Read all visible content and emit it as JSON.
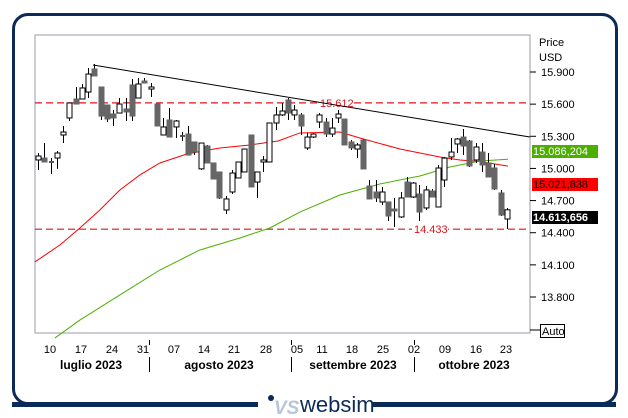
{
  "axis": {
    "title": "Price",
    "unit": "USD",
    "auto_label": "Auto",
    "ticks": [
      "15.900",
      "15.600",
      "15.300",
      "15.000",
      "14.700",
      "14.400",
      "14.100",
      "13.800"
    ]
  },
  "badges": {
    "ma_green": {
      "text": "15.086,204",
      "color": "#4caf00"
    },
    "ma_red": {
      "text": "15.021,838",
      "color": "#ff0000"
    },
    "last": {
      "text": "14.613,656",
      "color": "#000000"
    }
  },
  "levels": {
    "resistance": {
      "value": 15.612,
      "label": "15.612"
    },
    "support": {
      "value": 14.433,
      "label": "14.433"
    }
  },
  "date_labels": [
    "10",
    "17",
    "24",
    "31",
    "07",
    "14",
    "21",
    "28",
    "05",
    "11",
    "18",
    "25",
    "02",
    "09",
    "16",
    "23"
  ],
  "months": [
    "luglio 2023",
    "agosto 2023",
    "settembre 2023",
    "ottobre 2023"
  ],
  "brand": "websim",
  "chart_data": {
    "type": "candlestick",
    "ylabel": "Price USD",
    "ylim": [
      13.464,
      16.245
    ],
    "ohlc": [
      [
        15.079,
        15.144,
        14.985,
        15.116
      ],
      [
        15.097,
        15.237,
        15.06,
        15.06
      ],
      [
        15.06,
        15.097,
        14.948,
        15.06
      ],
      [
        15.097,
        15.163,
        14.996,
        15.144
      ],
      [
        15.312,
        15.396,
        15.237,
        15.34
      ],
      [
        15.471,
        15.611,
        15.443,
        15.611
      ],
      [
        15.648,
        15.76,
        15.601,
        15.601
      ],
      [
        15.648,
        15.788,
        15.648,
        15.751
      ],
      [
        15.713,
        15.937,
        15.657,
        15.881
      ],
      [
        15.928,
        15.975,
        15.863,
        15.863
      ],
      [
        15.76,
        15.76,
        15.452,
        15.489
      ],
      [
        15.592,
        15.592,
        15.433,
        15.461
      ],
      [
        15.508,
        15.545,
        15.396,
        15.471
      ],
      [
        15.517,
        15.657,
        15.517,
        15.601
      ],
      [
        15.555,
        15.657,
        15.443,
        15.527
      ],
      [
        15.779,
        15.835,
        15.443,
        15.489
      ],
      [
        15.657,
        15.844,
        15.657,
        15.788
      ],
      [
        15.816,
        15.844,
        15.797,
        15.797
      ],
      [
        15.741,
        15.797,
        15.667,
        15.76
      ],
      [
        15.601,
        15.601,
        15.396,
        15.396
      ],
      [
        15.312,
        15.471,
        15.312,
        15.387
      ],
      [
        15.452,
        15.564,
        15.293,
        15.293
      ],
      [
        15.387,
        15.452,
        15.284,
        15.443
      ],
      [
        15.303,
        15.34,
        15.256,
        15.303
      ],
      [
        15.321,
        15.396,
        15.125,
        15.125
      ],
      [
        15.247,
        15.247,
        15.125,
        15.153
      ],
      [
        14.996,
        15.237,
        14.985,
        15.237
      ],
      [
        15.209,
        15.219,
        15.051,
        15.051
      ],
      [
        15.051,
        15.051,
        14.901,
        14.901
      ],
      [
        14.967,
        14.967,
        14.715,
        14.724
      ],
      [
        14.612,
        14.743,
        14.575,
        14.715
      ],
      [
        14.78,
        14.985,
        14.761,
        14.957
      ],
      [
        14.911,
        15.06,
        14.911,
        15.06
      ],
      [
        14.967,
        15.181,
        14.967,
        15.181
      ],
      [
        15.312,
        15.312,
        14.827,
        14.827
      ],
      [
        14.873,
        14.967,
        14.724,
        14.967
      ],
      [
        15.06,
        15.116,
        14.967,
        15.079
      ],
      [
        15.06,
        15.424,
        15.06,
        15.424
      ],
      [
        15.424,
        15.573,
        15.359,
        15.499
      ],
      [
        15.499,
        15.611,
        15.489,
        15.536
      ],
      [
        15.639,
        15.657,
        15.452,
        15.517
      ],
      [
        15.499,
        15.592,
        15.452,
        15.545
      ],
      [
        15.499,
        15.517,
        15.312,
        15.396
      ],
      [
        15.191,
        15.331,
        15.172,
        15.293
      ],
      [
        15.293,
        15.331,
        15.284,
        15.321
      ],
      [
        15.433,
        15.517,
        15.377,
        15.499
      ],
      [
        15.433,
        15.471,
        15.293,
        15.321
      ],
      [
        15.321,
        15.471,
        15.293,
        15.377
      ],
      [
        15.471,
        15.545,
        15.424,
        15.508
      ],
      [
        15.461,
        15.461,
        15.219,
        15.219
      ],
      [
        15.247,
        15.265,
        15.172,
        15.191
      ],
      [
        15.181,
        15.237,
        15.097,
        15.219
      ],
      [
        15.265,
        15.275,
        14.995,
        14.995
      ],
      [
        14.836,
        14.892,
        14.715,
        14.715
      ],
      [
        14.78,
        14.892,
        14.687,
        14.724
      ],
      [
        14.687,
        14.827,
        14.659,
        14.78
      ],
      [
        14.687,
        14.687,
        14.509,
        14.556
      ],
      [
        14.621,
        14.724,
        14.453,
        14.603
      ],
      [
        14.547,
        14.78,
        14.537,
        14.724
      ],
      [
        14.873,
        14.92,
        14.733,
        14.733
      ],
      [
        14.733,
        14.873,
        14.724,
        14.864
      ],
      [
        14.761,
        14.845,
        14.509,
        14.593
      ],
      [
        14.631,
        14.836,
        14.612,
        14.799
      ],
      [
        14.789,
        14.808,
        14.733,
        14.733
      ],
      [
        14.64,
        15.032,
        14.64,
        15.004
      ],
      [
        14.892,
        15.107,
        14.827,
        15.097
      ],
      [
        15.107,
        15.284,
        15.079,
        15.153
      ],
      [
        15.228,
        15.284,
        15.144,
        15.275
      ],
      [
        15.293,
        15.368,
        15.125,
        15.209
      ],
      [
        15.256,
        15.265,
        15.013,
        15.023
      ],
      [
        15.079,
        15.237,
        15.051,
        15.2
      ],
      [
        15.153,
        15.237,
        14.967,
        15.032
      ],
      [
        15.051,
        15.144,
        14.92,
        14.92
      ],
      [
        15.004,
        15.041,
        14.799,
        14.808
      ],
      [
        14.771,
        14.799,
        14.556,
        14.565
      ],
      [
        14.528,
        14.631,
        14.435,
        14.614
      ]
    ],
    "ma_red": [
      [
        -0.5,
        14.127
      ],
      [
        3.5,
        14.285
      ],
      [
        6.7,
        14.444
      ],
      [
        9.9,
        14.612
      ],
      [
        13.1,
        14.799
      ],
      [
        16.3,
        14.939
      ],
      [
        19.5,
        15.051
      ],
      [
        23.8,
        15.135
      ],
      [
        29.1,
        15.191
      ],
      [
        33.9,
        15.219
      ],
      [
        38.4,
        15.256
      ],
      [
        41.9,
        15.331
      ],
      [
        48.3,
        15.34
      ],
      [
        51.5,
        15.284
      ],
      [
        57.9,
        15.181
      ],
      [
        64.3,
        15.107
      ],
      [
        67.5,
        15.079
      ],
      [
        70.7,
        15.065
      ],
      [
        75.2,
        15.022
      ]
    ],
    "ma_green": [
      [
        2.7,
        13.417
      ],
      [
        6.7,
        13.585
      ],
      [
        13.1,
        13.819
      ],
      [
        19.5,
        14.052
      ],
      [
        25.9,
        14.239
      ],
      [
        32.3,
        14.351
      ],
      [
        37.1,
        14.444
      ],
      [
        41.9,
        14.593
      ],
      [
        48.3,
        14.752
      ],
      [
        54.7,
        14.855
      ],
      [
        61.1,
        14.929
      ],
      [
        65.9,
        15.013
      ],
      [
        70.7,
        15.069
      ],
      [
        75.2,
        15.086
      ]
    ],
    "trendline": [
      [
        8.8,
        15.965
      ],
      [
        78.7,
        15.293
      ]
    ]
  }
}
